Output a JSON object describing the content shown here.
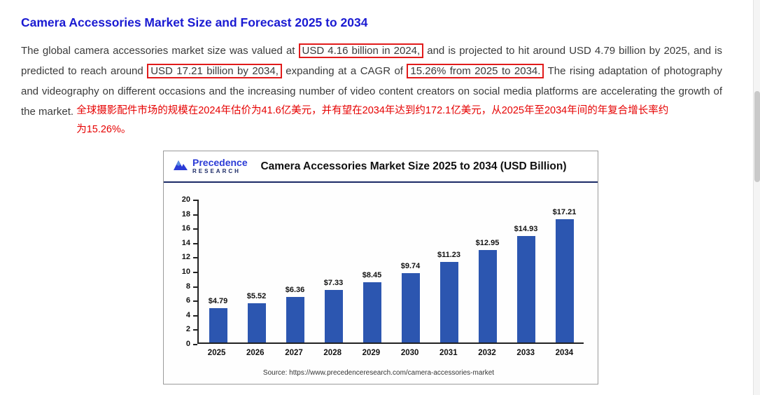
{
  "page": {
    "title": "Camera Accessories Market Size and Forecast 2025 to 2034"
  },
  "paragraph": {
    "seg1": "The global camera accessories market size was valued at ",
    "highlight1": "USD 4.16 billion in 2024,",
    "seg2": " and is projected to hit around USD 4.79 billion by 2025, and is predicted to reach around ",
    "highlight2": "USD 17.21 billion by 2034,",
    "seg3": " expanding at a CAGR of ",
    "highlight3": "15.26% from 2025 to 2034.",
    "seg4": " The rising adaptation of photography and videography on different occasions and the increasing number of video content creators on social media platforms are accelerating the growth of the market. ",
    "chinese_note": "全球摄影配件市场的规模在2024年估价为41.6亿美元，并有望在2034年达到约172.1亿美元，从2025年至2034年间的年复合增长率约为15.26%。"
  },
  "chart": {
    "brand": {
      "name": "Precedence",
      "sub": "RESEARCH"
    },
    "title": "Camera Accessories Market Size 2025 to 2034 (USD Billion)",
    "source": "Source: https://www.precedenceresearch.com/camera-accessories-market"
  },
  "chart_data": {
    "type": "bar",
    "title": "Camera Accessories Market Size 2025 to 2034 (USD Billion)",
    "categories": [
      "2025",
      "2026",
      "2027",
      "2028",
      "2029",
      "2030",
      "2031",
      "2032",
      "2033",
      "2034"
    ],
    "values": [
      4.79,
      5.52,
      6.36,
      7.33,
      8.45,
      9.74,
      11.23,
      12.95,
      14.93,
      17.21
    ],
    "labels": [
      "$4.79",
      "$5.52",
      "$6.36",
      "$7.33",
      "$8.45",
      "$9.74",
      "$11.23",
      "$12.95",
      "$14.93",
      "$17.21"
    ],
    "xlabel": "",
    "ylabel": "",
    "ylim": [
      0,
      20
    ],
    "ytick_step": 2,
    "bar_color": "#2c56b0",
    "grid": false,
    "legend": false
  },
  "colors": {
    "heading_blue": "#1a1ad2",
    "highlight_box_red": "#e11b1b",
    "annotation_red": "#e60000",
    "bar_blue": "#2c56b0",
    "header_rule_navy": "#1b2a66"
  }
}
